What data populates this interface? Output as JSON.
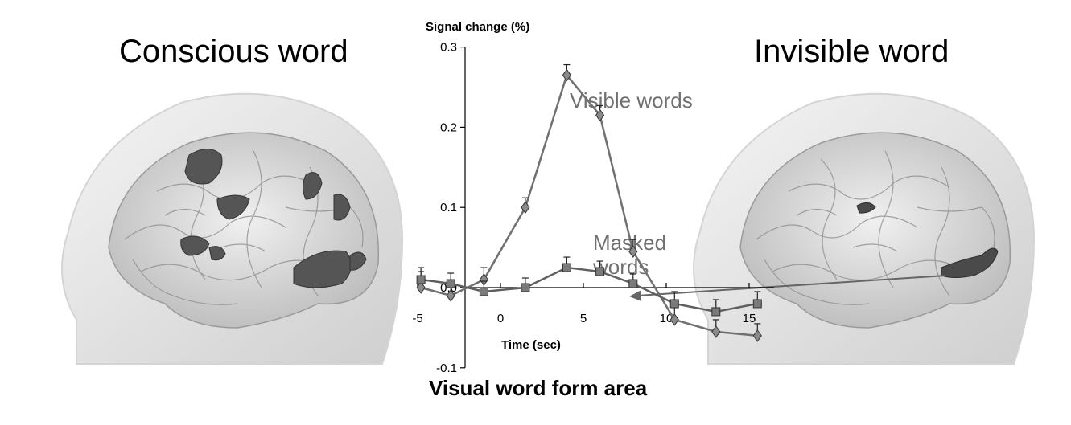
{
  "panels": {
    "left_title": "Conscious word",
    "right_title": "Invisible word"
  },
  "figure_caption": "Visual word form area",
  "colors": {
    "visible_series": "#707070",
    "masked_series": "#606060",
    "brain_surface": "#e6e6e6",
    "activation": "#555555"
  },
  "chart_data": {
    "type": "line",
    "ylabel": "Signal change (%)",
    "xlabel": "Time (sec)",
    "ylim": [
      -0.1,
      0.3
    ],
    "xlim": [
      -5,
      16
    ],
    "yticks": [
      0.3,
      0.2,
      0.1,
      0.0,
      -0.1
    ],
    "ytick_labels": [
      "0.3",
      "0.2",
      "0.1",
      "0.0",
      "-0.1"
    ],
    "xticks": [
      -5,
      0,
      5,
      10,
      15
    ],
    "xtick_labels": [
      "-5",
      "0",
      "5",
      "10",
      "15"
    ],
    "grid": false,
    "series": [
      {
        "name": "Visible words",
        "marker": "diamond",
        "x": [
          -4.8,
          -3,
          -1,
          1.5,
          4,
          6,
          8,
          10.5,
          13,
          15.5
        ],
        "y": [
          0.0,
          -0.01,
          0.01,
          0.1,
          0.265,
          0.215,
          0.045,
          -0.04,
          -0.055,
          -0.06
        ],
        "err": [
          0.02,
          0.015,
          0.015,
          0.012,
          0.013,
          0.012,
          0.015,
          0.015,
          0.015,
          0.015
        ]
      },
      {
        "name": "Masked words",
        "marker": "square",
        "x": [
          -4.8,
          -3,
          -1,
          1.5,
          4,
          6,
          8,
          10.5,
          13,
          15.5
        ],
        "y": [
          0.01,
          0.005,
          -0.005,
          0.0,
          0.025,
          0.02,
          0.005,
          -0.02,
          -0.03,
          -0.02
        ],
        "err": [
          0.015,
          0.013,
          0.013,
          0.012,
          0.013,
          0.013,
          0.012,
          0.015,
          0.015,
          0.015
        ]
      }
    ]
  }
}
